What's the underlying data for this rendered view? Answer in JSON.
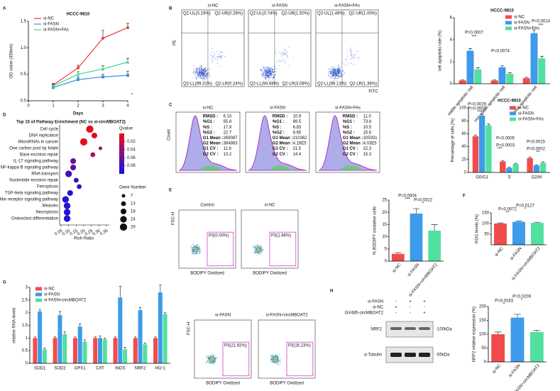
{
  "panel_letters": [
    "A",
    "B",
    "C",
    "D",
    "E",
    "F",
    "G",
    "H"
  ],
  "chart_data": [
    {
      "type": "line",
      "title": "HCCC-9810",
      "xlabel": "Days",
      "ylabel": "OD value (450nm)",
      "x": [
        1,
        2,
        3,
        4
      ],
      "xlim": [
        0,
        4
      ],
      "xticks": [
        0,
        1,
        2,
        3,
        4
      ],
      "ylim": [
        0,
        1.5
      ],
      "yticks": [
        {
          "value": 0,
          "label": "0.0"
        },
        0.5,
        {
          "value": 1,
          "label": "1.0"
        },
        1.5
      ],
      "series": [
        {
          "name": "si-NC",
          "color": "#ee3b3b",
          "marker": "circle",
          "values": [
            0.3,
            0.62,
            1.18,
            1.38
          ],
          "errors": [
            0.03,
            0.05,
            0.15,
            0.08
          ]
        },
        {
          "name": "si-FASN",
          "color": "#3d8fe0",
          "marker": "square",
          "values": [
            0.25,
            0.4,
            0.45,
            0.48
          ],
          "errors": [
            0.02,
            0.05,
            0.05,
            0.08
          ]
        },
        {
          "name": "si-FASN+FAs",
          "color": "#3fd98a",
          "marker": "triangle",
          "values": [
            0.28,
            0.5,
            0.6,
            0.73
          ],
          "errors": [
            0.02,
            0.05,
            0.06,
            0.07
          ]
        }
      ],
      "annotations": [
        "*"
      ]
    },
    {
      "type": "bar",
      "title": "HCCC-9810",
      "ylabel": "cell apoptotic rate (%)",
      "categories": [
        "viable apoptotic cell",
        "non-viable apoptotic cell",
        "total apoptotic cell"
      ],
      "ylim": [
        0,
        6
      ],
      "yticks": [
        0,
        2,
        4,
        6
      ],
      "series": [
        {
          "name": "si-NC",
          "color": "#f24b4b",
          "values": [
            0.3,
            0.3,
            0.5
          ],
          "errors": [
            0.05,
            0.05,
            0.08
          ]
        },
        {
          "name": "si-FASN",
          "color": "#3d9be9",
          "values": [
            3.0,
            1.5,
            4.6
          ],
          "errors": [
            0.2,
            0.15,
            0.3
          ]
        },
        {
          "name": "si-FASN+FAs",
          "color": "#52e0a0",
          "values": [
            1.3,
            0.9,
            2.3
          ],
          "errors": [
            0.15,
            0.1,
            0.2
          ]
        }
      ],
      "annotations": [
        "P=0.0007",
        "***",
        "P=0.0074",
        "P=0.0014",
        "***"
      ]
    },
    {
      "type": "bar",
      "title": "HCCC-9810",
      "ylabel": "Percentage of cells (%)",
      "categories": [
        "G0/G1",
        "S",
        "G2/M"
      ],
      "ylim": [
        0,
        100
      ],
      "yticks": [
        0,
        20,
        40,
        60,
        80,
        100
      ],
      "series": [
        {
          "name": "si-NC",
          "color": "#f24b4b",
          "values": [
            56,
            17,
            22
          ],
          "errors": [
            2,
            1.5,
            1.5
          ]
        },
        {
          "name": "si-FASN",
          "color": "#3d9be9",
          "values": [
            88,
            7,
            11
          ],
          "errors": [
            2,
            1,
            1
          ]
        },
        {
          "name": "si-FASN+FAs",
          "color": "#52e0a0",
          "values": [
            73,
            13,
            15
          ],
          "errors": [
            2,
            1,
            1.5
          ]
        }
      ],
      "annotations": [
        "P=0.0026",
        "P=0.0001",
        "***",
        "P=0.0005",
        "P=0.0003",
        "***",
        "P=0.0015",
        "P=0.0002",
        "**"
      ]
    },
    {
      "type": "bubble",
      "title": "Top 15 of Pathway Enrichment (NC vs si-circMBOAT2)",
      "xlabel": "Rich Ratio",
      "categories": [
        "Cell cycle",
        "DNA replication",
        "MicroRNAs in cancer",
        "One carbon pool by folate",
        "Base excision repair",
        "IL-17 signaling pathway",
        "NF-kappa B signaling pathway",
        "RNA transport",
        "Nucleotide excision repair",
        "Ferroptosis",
        "TGF-beta signaling pathway",
        "NOD-like receptor signaling pathway",
        "Measles",
        "Necroptosis",
        "Osteoclast differentiation"
      ],
      "values": [
        0.24,
        0.27,
        0.2,
        0.31,
        0.26,
        0.13,
        0.13,
        0.1,
        0.15,
        0.17,
        0.11,
        0.08,
        0.09,
        0.09,
        0.09
      ],
      "gene_number": [
        29,
        18,
        29,
        7,
        13,
        18,
        18,
        24,
        13,
        13,
        18,
        24,
        24,
        24,
        24
      ],
      "qvalue": [
        0.005,
        0.01,
        0.005,
        0.04,
        0.03,
        0.06,
        0.07,
        0.08,
        0.08,
        0.08,
        0.09,
        0.09,
        0.09,
        0.09,
        0.09
      ],
      "xlim": [
        0.05,
        0.35
      ],
      "xticks": [
        0.05,
        {
          "value": 0.1,
          "label": "0.10"
        },
        0.15,
        {
          "value": 0.2,
          "label": "0.20"
        },
        0.25,
        {
          "value": 0.3,
          "label": "0.30"
        },
        0.35
      ],
      "colorbar_title": "Qvalue",
      "qlim": [
        0,
        0.1
      ],
      "qticks": [
        0.02,
        0.04,
        0.06,
        0.08
      ],
      "colors": [
        "#ee1111",
        "#1111ee"
      ],
      "size_title": "Gene Number",
      "size_ticks": [
        7,
        13,
        18,
        24,
        29
      ]
    },
    {
      "type": "bar",
      "ylabel": "% BODIPY oxidative cells",
      "categories": [
        "si-NC",
        "si-FASN",
        "si-FASN+circMBOAT2"
      ],
      "values": [
        3,
        19.5,
        12.5
      ],
      "errors": [
        0.5,
        2,
        2.5
      ],
      "colors": [
        "#f24b4b",
        "#3d9be9",
        "#52e0a0"
      ],
      "ylim": [
        0,
        25
      ],
      "yticks": [
        0,
        5,
        10,
        15,
        20,
        25
      ],
      "annotations": [
        "P=0.0004",
        "P=0.0322",
        "***",
        "*"
      ]
    },
    {
      "type": "bar",
      "ylabel": "ROS levels (%)",
      "categories": [
        "si-NC",
        "si-FASN",
        "si-FASN+circMBOAT2"
      ],
      "values": [
        100,
        108,
        103
      ],
      "errors": [
        3,
        4,
        3
      ],
      "colors": [
        "#f24b4b",
        "#3d9be9",
        "#52e0a0"
      ],
      "ylim": [
        0,
        150
      ],
      "yticks": [
        50,
        100,
        150
      ],
      "annotations": [
        "P=0.0072",
        "P=0.0127",
        "**",
        "*"
      ]
    },
    {
      "type": "bar",
      "ylabel": "relative RNA levels",
      "categories": [
        "SOD1",
        "SOD2",
        "GPX1",
        "CAT",
        "iNOS",
        "NRF2",
        "HO-1"
      ],
      "ylim": [
        0,
        3
      ],
      "yticks": [
        0,
        0.5,
        1,
        1.5,
        2,
        2.5,
        3
      ],
      "series": [
        {
          "name": "si-NC",
          "color": "#f24b4b",
          "values": [
            1,
            1,
            1,
            1,
            1,
            1,
            1
          ],
          "errors": [
            0.05,
            0.05,
            0.05,
            0.05,
            0.05,
            0.05,
            0.05
          ]
        },
        {
          "name": "si-FASN",
          "color": "#3d9be9",
          "values": [
            2.05,
            1.9,
            1.45,
            1.0,
            2.6,
            2.1,
            2.8
          ],
          "errors": [
            0.08,
            0.15,
            0.1,
            0.08,
            0.45,
            0.1,
            0.3
          ]
        },
        {
          "name": "si-FASN+circMBOAT2",
          "color": "#52e0a0",
          "values": [
            0.55,
            1.15,
            0.85,
            0.95,
            0.55,
            0.75,
            1.95
          ],
          "errors": [
            0.05,
            0.1,
            0.08,
            0.05,
            0.08,
            0.05,
            0.05
          ]
        }
      ],
      "annotations": [
        "#",
        "#",
        "#",
        "#",
        "#",
        "#",
        "*",
        "*",
        "*",
        "*",
        "*",
        "*"
      ]
    },
    {
      "type": "bar",
      "ylabel": "NRF2 relative expression (%)",
      "categories": [
        "si-NC",
        "si-FASN",
        "si-FASN+circMBOAT2"
      ],
      "values": [
        100,
        160,
        108
      ],
      "errors": [
        8,
        12,
        6
      ],
      "colors": [
        "#f24b4b",
        "#3d9be9",
        "#52e0a0"
      ],
      "ylim": [
        0,
        200
      ],
      "yticks": [
        0,
        50,
        100,
        150,
        200
      ],
      "annotations": [
        "P=0.0163",
        "P=0.0209",
        "*",
        "*"
      ]
    }
  ],
  "apoptosis_flow": {
    "ylabel": "PE",
    "xlabel": "FITC",
    "plots": [
      {
        "title": "si-NC",
        "quadrants": [
          "Q2-UL(0.19%)",
          "Q2-UR(0.26%)",
          "Q2-LL(99.31%)",
          "Q2-LR(0.24%)"
        ]
      },
      {
        "title": "si-FASN",
        "quadrants": [
          "Q2-UL(0.74%)",
          "Q2-UR(1.50%)",
          "Q2-LL(94.68%)",
          "Q2-LR(3.08%)"
        ]
      },
      {
        "title": "si-FASN+FAs",
        "quadrants": [
          "Q2-UL(1.49%)",
          "Q2-UR(1.00%)",
          "Q2-LL(96.13%)",
          "Q2-LR(1.38%)"
        ]
      }
    ]
  },
  "cell_cycle_flow": {
    "ylabel": "Count",
    "plots": [
      {
        "title": "si-NC",
        "stats": [
          [
            "RMSD :",
            "6.10"
          ],
          [
            "%G1 :",
            "55.8"
          ],
          [
            "%S :",
            "17.9"
          ],
          [
            "%G2 :",
            "22.7"
          ],
          [
            "G1 Mean :",
            "269087"
          ],
          [
            "G2 Mean :",
            "384863"
          ],
          [
            "G1 CV :",
            "11.6"
          ],
          [
            "G2 CV :",
            "13.2"
          ]
        ]
      },
      {
        "title": "si-FASN",
        "stats": [
          [
            "RMSD :",
            "10.9"
          ],
          [
            "%G1 :",
            "89.5"
          ],
          [
            "%S :",
            "6.83"
          ],
          [
            "%G2 :",
            "9.65"
          ],
          [
            "G1 Mean :",
            "210362"
          ],
          [
            "G2 Mean :",
            "4.16E5"
          ],
          [
            "G1 CV :",
            "21.5"
          ],
          [
            "G2 CV :",
            "14.4"
          ]
        ]
      },
      {
        "title": "si-FASN+FAs",
        "stats": [
          [
            "RMSD :",
            "11.0"
          ],
          [
            "%G1 :",
            "73.6"
          ],
          [
            "%S :",
            "10.5"
          ],
          [
            "%G2 :",
            "15.6"
          ],
          [
            "G1 Mean :",
            "205931"
          ],
          [
            "G2 Mean :",
            "4.03E5"
          ],
          [
            "G1 CV :",
            "22.3"
          ],
          [
            "G2 CV :",
            "15.3"
          ]
        ]
      }
    ]
  },
  "bodipy_flow": {
    "ylabel": "FSC-H",
    "xlabel": "BODIPY Oxidized",
    "plots": [
      {
        "title": "Control",
        "gate": "P3(0.00%)"
      },
      {
        "title": "si-NC",
        "gate": "P3(1.66%)"
      },
      {
        "title": "si-FASN",
        "gate": "P3(21.92%)"
      },
      {
        "title": "si-FASN+circMBOAT2",
        "gate": "P3(16.23%)"
      }
    ]
  },
  "western_blot": {
    "conditions": [
      {
        "label": "si-FASN",
        "signs": [
          "-",
          "+",
          "+"
        ]
      },
      {
        "label": "si-NC",
        "signs": [
          "+",
          "-",
          "-"
        ]
      },
      {
        "label": "GV485-circMBOAT2",
        "signs": [
          "-",
          "-",
          "+"
        ]
      }
    ],
    "bands": [
      {
        "label": "NRF2",
        "size": "-100kDa"
      },
      {
        "label": "α-Tubulin",
        "size": "-55kDa"
      }
    ]
  }
}
